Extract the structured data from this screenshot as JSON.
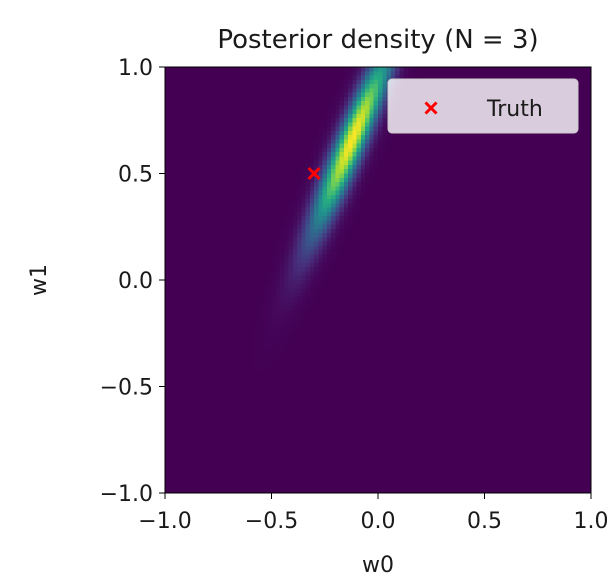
{
  "chart_data": {
    "type": "heatmap",
    "title": "Posterior density (N = 3)",
    "xlabel": "w0",
    "ylabel": "w1",
    "xlim": [
      -1.0,
      1.0
    ],
    "ylim": [
      -1.0,
      1.0
    ],
    "xticks": [
      -1.0,
      -0.5,
      0.0,
      0.5,
      1.0
    ],
    "yticks": [
      -1.0,
      -0.5,
      0.0,
      0.5,
      1.0
    ],
    "xtick_labels": [
      "−1.0",
      "−0.5",
      "0.0",
      "0.5",
      "1.0"
    ],
    "ytick_labels": [
      "−1.0",
      "−0.5",
      "0.0",
      "0.5",
      "1.0"
    ],
    "colormap": "viridis",
    "background_color": "#440154",
    "density": {
      "distribution": "bivariate-gaussian",
      "mean": [
        -0.12,
        0.66
      ],
      "std": [
        0.13,
        0.3
      ],
      "correlation": 0.93
    },
    "markers": [
      {
        "name": "Truth",
        "x": -0.3,
        "y": 0.5,
        "marker": "x",
        "color": "#ff0000"
      }
    ],
    "legend": {
      "placement": "top-right",
      "entries": [
        "Truth"
      ]
    },
    "grid": false
  }
}
